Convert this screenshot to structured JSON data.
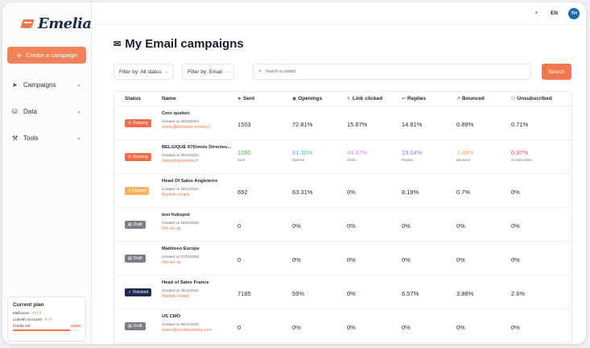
{
  "brand": {
    "name": "Emelia"
  },
  "sidebar": {
    "create_label": "Create a campaign",
    "nav": [
      {
        "label": "Campaigns",
        "icon": "send-icon"
      },
      {
        "label": "Data",
        "icon": "database-icon"
      },
      {
        "label": "Tools",
        "icon": "tools-icon"
      }
    ],
    "plan": {
      "title": "Current plan",
      "mailboxes_label": "Mailboxes :",
      "mailboxes_value": "44 / 0",
      "linkedin_label": "Linkedin accounts :",
      "linkedin_value": "5 / 0",
      "credits_label": "Credits left :",
      "credits_value": "44594",
      "credits_fraction": 0.85
    }
  },
  "topbar": {
    "lang": "EN",
    "avatar_initials": "TH"
  },
  "page": {
    "title": "My Email campaigns"
  },
  "filters": {
    "status_label": "Filter by: All status",
    "channel_label": "Filter by: Email",
    "search_placeholder": "Search a contact",
    "search_button": "Search"
  },
  "table": {
    "headers": {
      "status": "Status",
      "name": "Name",
      "sent": "Sent",
      "openings": "Openings",
      "link_clicked": "Link clicked",
      "replies": "Replies",
      "bounced": "Bounced",
      "unsubscribed": "Unsubscribed"
    },
    "rows": [
      {
        "status": "Running",
        "status_color": "#ef6b4a",
        "name": "Cmo quebec",
        "date": "Created on 30/10/2024",
        "email": "marie@business-emelia.fr",
        "sent": "1503",
        "openings": "72.81%",
        "clicks": "15.87%",
        "replies": "14.81%",
        "bounced": "0.89%",
        "unsubscribed": "0.71%"
      },
      {
        "status": "Running",
        "status_color": "#ef6b4a",
        "name": "BELGIQUE 97€/mois Directeu...",
        "date": "Created on 28/10/2024",
        "email": "marie@getemelia.fr",
        "sent": "1090",
        "openings": "81.30%",
        "clicks": "44.97%",
        "replies": "19.04%",
        "bounced": "1.45%",
        "unsubscribed": "0.97%",
        "sent_sub": "Sent",
        "openings_sub": "Opened",
        "clicks_sub": "Clicks",
        "replies_sub": "Replies",
        "bounced_sub": "Bounced",
        "unsubscribed_sub": "Unsubscribes"
      },
      {
        "status": "Paused",
        "status_color": "#f6b35a",
        "name": "Head Of Sales Angleterre",
        "date": "Created on 15/11/2024",
        "email": "Multiple emails",
        "sent": "692",
        "openings": "63.31%",
        "clicks": "0%",
        "replies": "8.19%",
        "bounced": "0.7%",
        "unsubscribed": "0%"
      },
      {
        "status": "Draft",
        "status_color": "#7d7f86",
        "name": "test hubspot",
        "date": "Created on 15/01/2025",
        "email": "Not set up",
        "sent": "0",
        "openings": "0%",
        "clicks": "0%",
        "replies": "0%",
        "bounced": "0%",
        "unsubscribed": "0%"
      },
      {
        "status": "Draft",
        "status_color": "#7d7f86",
        "name": "Maildoso Europe",
        "date": "Created on 07/01/2025",
        "email": "Not set up",
        "sent": "0",
        "openings": "0%",
        "clicks": "0%",
        "replies": "0%",
        "bounced": "0%",
        "unsubscribed": "0%"
      },
      {
        "status": "Finished",
        "status_color": "#1f2a4f",
        "name": "Head of Sales France",
        "date": "Created on 25/11/2024",
        "email": "Multiple emails",
        "sent": "7185",
        "openings": "59%",
        "clicks": "0%",
        "replies": "6.57%",
        "bounced": "3.88%",
        "unsubscribed": "2.6%"
      },
      {
        "status": "Draft",
        "status_color": "#7d7f86",
        "name": "US CMO",
        "date": "Created on 06/11/2024",
        "email": "marie@bossheemelia.com",
        "sent": "0",
        "openings": "0%",
        "clicks": "0%",
        "replies": "0%",
        "bounced": "0%",
        "unsubscribed": "0%"
      }
    ]
  },
  "colors": {
    "accent": "#f3764c",
    "sent_green": "#58b05a",
    "openings_teal": "#5ab7c9",
    "clicks_pink": "#d98ce0",
    "replies_purple": "#9c7fe0",
    "bounced_orange": "#f5a65a",
    "unsub_red": "#e25555"
  }
}
